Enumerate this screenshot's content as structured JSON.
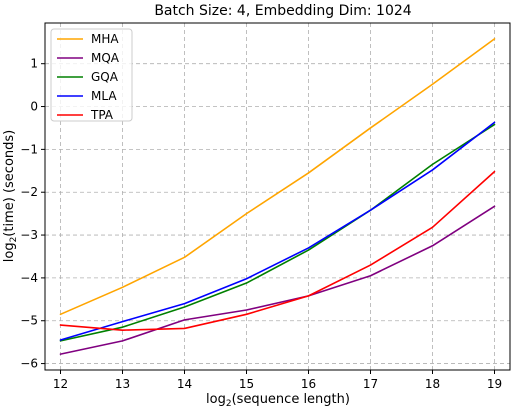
{
  "chart_data": {
    "type": "line",
    "title": "Batch Size: 4, Embedding Dim: 1024",
    "xlabel_prefix": "log",
    "xlabel_sub": "2",
    "xlabel_suffix": "(sequence length)",
    "ylabel_prefix": "log",
    "ylabel_sub": "2",
    "ylabel_suffix": "(time) (seconds)",
    "xlim": [
      11.75,
      19.25
    ],
    "ylim": [
      -6.15,
      1.95
    ],
    "xticks": [
      12,
      13,
      14,
      15,
      16,
      17,
      18,
      19
    ],
    "yticks": [
      -6,
      -5,
      -4,
      -3,
      -2,
      -1,
      0,
      1
    ],
    "ytick_labels": [
      "−6",
      "−5",
      "−4",
      "−3",
      "−2",
      "−1",
      "0",
      "1"
    ],
    "grid": true,
    "legend_position": "top-left",
    "x": [
      12,
      13,
      14,
      15,
      16,
      17,
      18,
      19
    ],
    "series": [
      {
        "name": "MHA",
        "color": "#ffa500",
        "values": [
          -4.85,
          -4.22,
          -3.52,
          -2.5,
          -1.55,
          -0.5,
          0.52,
          1.58
        ]
      },
      {
        "name": "MQA",
        "color": "#800080",
        "values": [
          -5.78,
          -5.47,
          -4.98,
          -4.75,
          -4.42,
          -3.95,
          -3.25,
          -2.33
        ]
      },
      {
        "name": "GQA",
        "color": "#008000",
        "values": [
          -5.47,
          -5.15,
          -4.68,
          -4.12,
          -3.35,
          -2.42,
          -1.35,
          -0.42
        ]
      },
      {
        "name": "MLA",
        "color": "#0000ff",
        "values": [
          -5.45,
          -5.02,
          -4.6,
          -4.02,
          -3.3,
          -2.42,
          -1.48,
          -0.37
        ]
      },
      {
        "name": "TPA",
        "color": "#ff0000",
        "values": [
          -5.1,
          -5.22,
          -5.18,
          -4.85,
          -4.42,
          -3.7,
          -2.82,
          -1.52
        ]
      }
    ]
  }
}
